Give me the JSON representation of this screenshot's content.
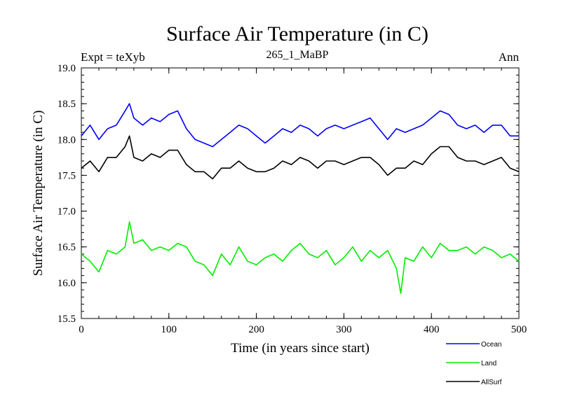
{
  "chart_data": {
    "type": "line",
    "title": "Surface Air Temperature (in C)",
    "subtitle": "265_1_MaBP",
    "left_label": "Expt = teXyb",
    "right_label": "Ann",
    "xlabel": "Time (in years since start)",
    "ylabel": "Surface Air Temperature (in C)",
    "xlim": [
      0,
      500
    ],
    "ylim": [
      15.5,
      19.0
    ],
    "xticks": [
      0,
      100,
      200,
      300,
      400,
      500
    ],
    "yticks": [
      15.5,
      16.0,
      16.5,
      17.0,
      17.5,
      18.0,
      18.5,
      19.0
    ],
    "ytick_labels": [
      "15.5",
      "16.0",
      "16.5",
      "17.0",
      "17.5",
      "18.0",
      "18.5",
      "19.0"
    ],
    "legend_position": "bottom-right, outside plot",
    "series": [
      {
        "name": "Ocean",
        "color": "#0000ff",
        "x": [
          0,
          10,
          20,
          30,
          40,
          50,
          55,
          60,
          70,
          80,
          90,
          100,
          110,
          120,
          130,
          140,
          150,
          160,
          170,
          180,
          190,
          200,
          210,
          220,
          230,
          240,
          250,
          260,
          270,
          280,
          290,
          300,
          310,
          320,
          330,
          340,
          350,
          360,
          370,
          380,
          390,
          400,
          410,
          420,
          430,
          440,
          450,
          460,
          470,
          480,
          490,
          500
        ],
        "values": [
          18.05,
          18.2,
          18.0,
          18.15,
          18.2,
          18.4,
          18.5,
          18.3,
          18.2,
          18.3,
          18.25,
          18.35,
          18.4,
          18.15,
          18.0,
          17.95,
          17.9,
          18.0,
          18.1,
          18.2,
          18.15,
          18.05,
          17.95,
          18.05,
          18.15,
          18.1,
          18.2,
          18.15,
          18.05,
          18.15,
          18.2,
          18.15,
          18.2,
          18.25,
          18.3,
          18.15,
          18.0,
          18.15,
          18.1,
          18.15,
          18.2,
          18.3,
          18.4,
          18.35,
          18.2,
          18.15,
          18.2,
          18.1,
          18.2,
          18.2,
          18.05,
          18.05
        ]
      },
      {
        "name": "Land",
        "color": "#00ee00",
        "x": [
          0,
          10,
          20,
          30,
          40,
          50,
          55,
          60,
          70,
          80,
          90,
          100,
          110,
          120,
          130,
          140,
          150,
          160,
          170,
          180,
          190,
          200,
          210,
          220,
          230,
          240,
          250,
          260,
          270,
          280,
          290,
          300,
          310,
          320,
          330,
          340,
          350,
          360,
          365,
          370,
          380,
          390,
          400,
          410,
          420,
          430,
          440,
          450,
          460,
          470,
          480,
          490,
          500
        ],
        "values": [
          16.4,
          16.3,
          16.15,
          16.45,
          16.4,
          16.5,
          16.85,
          16.55,
          16.6,
          16.45,
          16.5,
          16.45,
          16.55,
          16.5,
          16.3,
          16.25,
          16.1,
          16.4,
          16.25,
          16.5,
          16.3,
          16.25,
          16.35,
          16.4,
          16.3,
          16.45,
          16.55,
          16.4,
          16.35,
          16.45,
          16.25,
          16.35,
          16.5,
          16.3,
          16.45,
          16.35,
          16.45,
          16.2,
          15.85,
          16.35,
          16.3,
          16.5,
          16.35,
          16.55,
          16.45,
          16.45,
          16.5,
          16.4,
          16.5,
          16.45,
          16.35,
          16.4,
          16.3
        ]
      },
      {
        "name": "AllSurf",
        "color": "#000000",
        "x": [
          0,
          10,
          20,
          30,
          40,
          50,
          55,
          60,
          70,
          80,
          90,
          100,
          110,
          120,
          130,
          140,
          150,
          160,
          170,
          180,
          190,
          200,
          210,
          220,
          230,
          240,
          250,
          260,
          270,
          280,
          290,
          300,
          310,
          320,
          330,
          340,
          350,
          360,
          370,
          380,
          390,
          400,
          410,
          420,
          430,
          440,
          450,
          460,
          470,
          480,
          490,
          500
        ],
        "values": [
          17.6,
          17.7,
          17.55,
          17.75,
          17.75,
          17.9,
          18.05,
          17.75,
          17.7,
          17.8,
          17.75,
          17.85,
          17.85,
          17.65,
          17.55,
          17.55,
          17.45,
          17.6,
          17.6,
          17.7,
          17.6,
          17.55,
          17.55,
          17.6,
          17.7,
          17.65,
          17.75,
          17.7,
          17.6,
          17.7,
          17.7,
          17.65,
          17.7,
          17.75,
          17.75,
          17.65,
          17.5,
          17.6,
          17.6,
          17.7,
          17.65,
          17.8,
          17.9,
          17.9,
          17.75,
          17.7,
          17.7,
          17.65,
          17.7,
          17.75,
          17.6,
          17.55
        ]
      }
    ]
  }
}
